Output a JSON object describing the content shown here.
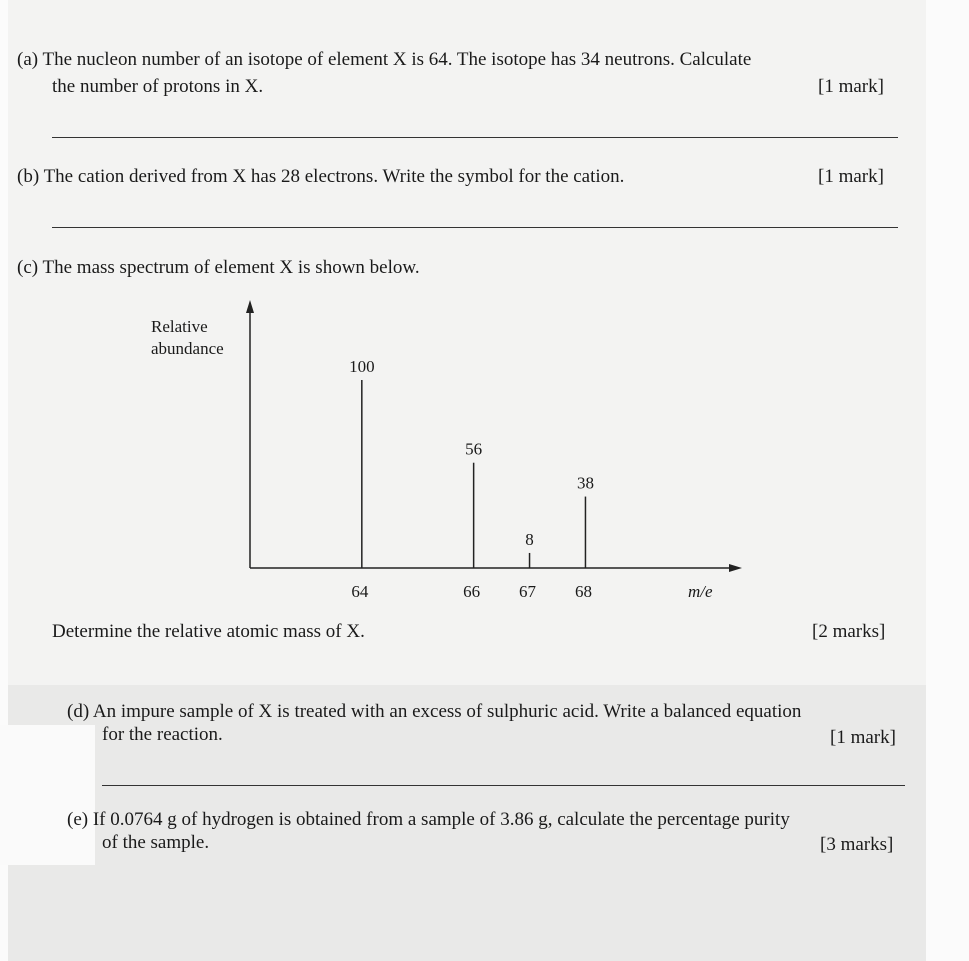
{
  "questions": {
    "a": {
      "label": "(a)",
      "line1": "The nucleon number of an isotope of element X is 64. The isotope has 34 neutrons. Calculate",
      "line2": "the number of protons in X.",
      "marks": "[1 mark]"
    },
    "b": {
      "label": "(b)",
      "line1": "The cation derived from X has 28 electrons. Write the symbol for the cation.",
      "marks": "[1 mark]"
    },
    "c": {
      "label": "(c)",
      "line1": "The mass spectrum of element X is shown below.",
      "prompt": "Determine the relative atomic mass of X.",
      "marks": "[2 marks]"
    },
    "d": {
      "label": "(d)",
      "line1": "An impure sample of X is treated with an excess of sulphuric acid. Write a balanced equation",
      "line2": "for the reaction.",
      "marks": "[1 mark]"
    },
    "e": {
      "label": "(e)",
      "line1": "If 0.0764 g of hydrogen is obtained from a sample of 3.86 g, calculate the percentage purity",
      "line2": "of the sample.",
      "marks": "[3 marks]"
    }
  },
  "chart_data": {
    "type": "bar",
    "title": "",
    "ylabel_line1": "Relative",
    "ylabel_line2": "abundance",
    "xlabel": "m/e",
    "x": [
      64,
      66,
      67,
      68
    ],
    "x_labels": [
      "64",
      "66",
      "67",
      "68"
    ],
    "values": [
      100,
      56,
      8,
      38
    ],
    "value_labels": [
      "100",
      "56",
      "8",
      "38"
    ],
    "xlim": [
      62,
      70.8
    ],
    "ylim": [
      0,
      140
    ],
    "grid": false,
    "legend": "none"
  }
}
